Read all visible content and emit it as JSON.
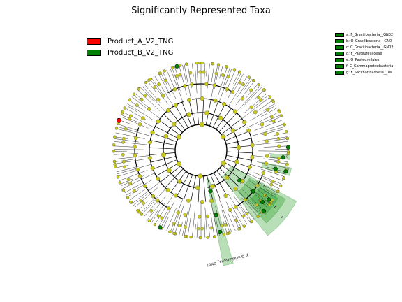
{
  "chart_data": {
    "type": "cladogram",
    "title": "Significantly Represented Taxa",
    "groups": [
      {
        "name": "Product_A_V2_TNG",
        "color": "#ff0000"
      },
      {
        "name": "Product_B_V2_TNG",
        "color": "#008000"
      }
    ],
    "node_color": "#c8c818",
    "clade_legend": [
      "a: F_Gracilibacteria__GN02",
      "b: O_Gracilibacteria__GN0",
      "c: C_Gracilibacteria__GN02",
      "d: F_Pasteurellaceae",
      "e: O_Pasteurellales",
      "f: C_Gammaproteobacteria",
      "g: F_Saccharibacteria__TM"
    ],
    "highlighted_clades": [
      {
        "label": "p_Gracilibacteria__GN02",
        "group": "Product_B_V2_TNG"
      },
      {
        "label": "a",
        "group": "Product_B_V2_TNG"
      },
      {
        "label": "b",
        "group": "Product_B_V2_TNG"
      },
      {
        "label": "c",
        "group": "Product_B_V2_TNG"
      },
      {
        "label": "d",
        "group": "Product_B_V2_TNG"
      },
      {
        "label": "e",
        "group": "Product_B_V2_TNG"
      },
      {
        "label": "f",
        "group": "Product_B_V2_TNG"
      },
      {
        "label": "g",
        "group": "Product_B_V2_TNG"
      }
    ]
  }
}
